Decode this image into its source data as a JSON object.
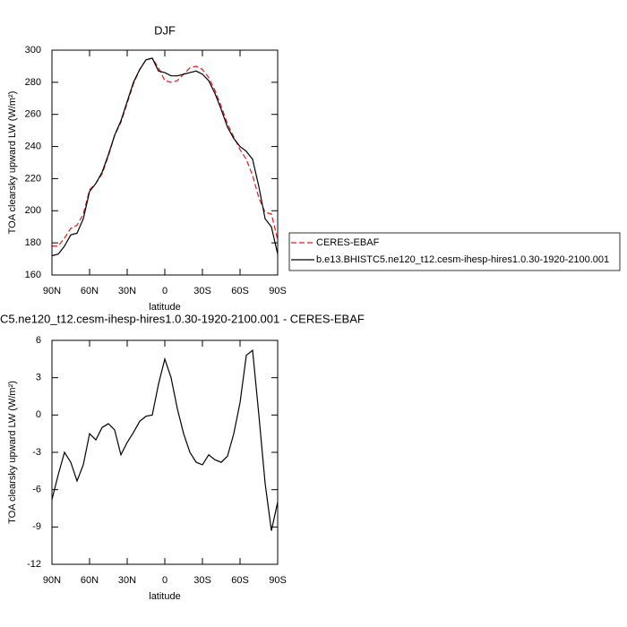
{
  "chart_data": [
    {
      "type": "line",
      "title": "DJF",
      "xlabel": "latitude",
      "ylabel": "TOA clearsky upward LW (W/m²)",
      "x": [
        90,
        85,
        80,
        75,
        70,
        65,
        60,
        55,
        50,
        45,
        40,
        35,
        30,
        25,
        20,
        15,
        10,
        5,
        0,
        -5,
        -10,
        -15,
        -20,
        -25,
        -30,
        -35,
        -40,
        -45,
        -50,
        -55,
        -60,
        -65,
        -70,
        -75,
        -80,
        -85,
        -90
      ],
      "xlim": [
        90,
        -90
      ],
      "xticks": [
        {
          "value": 90,
          "label": "90N"
        },
        {
          "value": 60,
          "label": "60N"
        },
        {
          "value": 30,
          "label": "30N"
        },
        0,
        {
          "value": -30,
          "label": "30S"
        },
        {
          "value": -60,
          "label": "60S"
        },
        {
          "value": -90,
          "label": "90S"
        }
      ],
      "ylim": [
        160,
        300
      ],
      "yticks": [
        160,
        180,
        200,
        220,
        240,
        260,
        280,
        300
      ],
      "legend": "right",
      "series": [
        {
          "name": "CERES-EBAF",
          "color": "#e41a1c",
          "dashed": true,
          "values": [
            178,
            178,
            183,
            189,
            191,
            198,
            213,
            217,
            223,
            234,
            247,
            255,
            267,
            279,
            288,
            294,
            295,
            289,
            281,
            280,
            281,
            285,
            289,
            290,
            288,
            283,
            275,
            265,
            254,
            246,
            238,
            232,
            222,
            208,
            199,
            198,
            182
          ]
        },
        {
          "name": "b.e13.BHISTC5.ne120_t12.cesm-ihesp-hires1.0.30-1920-2100.001",
          "color": "#000000",
          "dashed": false,
          "values": [
            172,
            173,
            178,
            185,
            186,
            195,
            212,
            217,
            224,
            235,
            247,
            256,
            268,
            280,
            288,
            294,
            295,
            287,
            286,
            284,
            284,
            285,
            286,
            287,
            285,
            281,
            273,
            263,
            252,
            245,
            240,
            237,
            232,
            215,
            195,
            190,
            173
          ]
        }
      ]
    },
    {
      "type": "line",
      "title": "C5.ne120_t12.cesm-ihesp-hires1.0.30-1920-2100.001 - CERES-EBAF",
      "xlabel": "latitude",
      "ylabel": "TOA clearsky upward LW (W/m²)",
      "x": [
        90,
        85,
        80,
        75,
        70,
        65,
        60,
        55,
        50,
        45,
        40,
        35,
        30,
        25,
        20,
        15,
        10,
        5,
        0,
        -5,
        -10,
        -15,
        -20,
        -25,
        -30,
        -35,
        -40,
        -45,
        -50,
        -55,
        -60,
        -65,
        -70,
        -75,
        -80,
        -85,
        -90
      ],
      "xlim": [
        90,
        -90
      ],
      "xticks": [
        {
          "value": 90,
          "label": "90N"
        },
        {
          "value": 60,
          "label": "60N"
        },
        {
          "value": 30,
          "label": "30N"
        },
        0,
        {
          "value": -30,
          "label": "30S"
        },
        {
          "value": -60,
          "label": "60S"
        },
        {
          "value": -90,
          "label": "90S"
        }
      ],
      "ylim": [
        -12,
        6
      ],
      "yticks": [
        -12,
        -9,
        -6,
        -3,
        0,
        3,
        6
      ],
      "series": [
        {
          "color": "#000000",
          "dashed": false,
          "values": [
            -6.8,
            -4.8,
            -3.0,
            -3.8,
            -5.3,
            -4.0,
            -1.5,
            -2.0,
            -1.0,
            -0.7,
            -1.2,
            -3.2,
            -2.2,
            -1.4,
            -0.5,
            -0.1,
            0.0,
            2.5,
            4.5,
            3.0,
            0.5,
            -1.5,
            -3.0,
            -3.8,
            -4.0,
            -3.2,
            -3.6,
            -3.8,
            -3.3,
            -1.5,
            1.0,
            4.8,
            5.2,
            0.0,
            -5.5,
            -9.3,
            -7.0
          ]
        }
      ]
    }
  ]
}
